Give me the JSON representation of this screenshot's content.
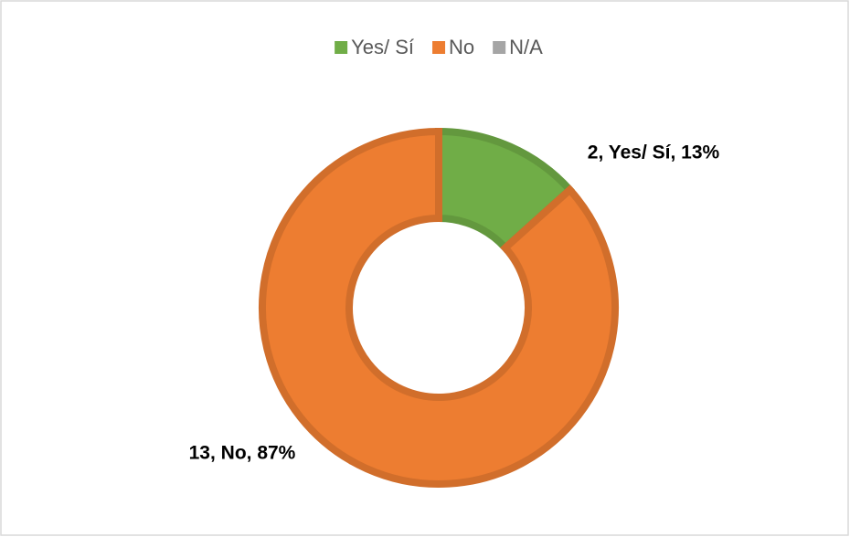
{
  "chart_data": {
    "type": "donut",
    "categories": [
      "Yes/ Sí",
      "No",
      "N/A"
    ],
    "values": [
      2,
      13,
      0
    ],
    "value_labels": [
      "2, Yes/ Sí, 13%",
      "13, No, 87%",
      null
    ],
    "colors": [
      "#70ad47",
      "#ed7d31",
      "#a5a5a5"
    ],
    "legend": "top"
  }
}
